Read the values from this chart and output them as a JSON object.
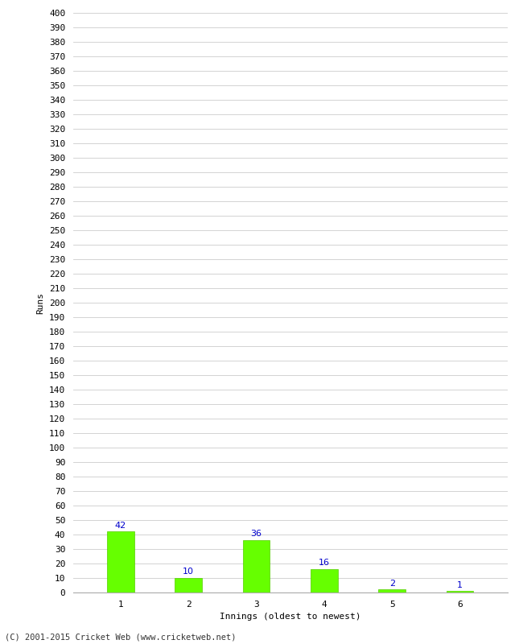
{
  "xlabel": "Innings (oldest to newest)",
  "ylabel": "Runs",
  "categories": [
    1,
    2,
    3,
    4,
    5,
    6
  ],
  "values": [
    42,
    10,
    36,
    16,
    2,
    1
  ],
  "bar_color": "#66ff00",
  "bar_edge_color": "#55cc00",
  "label_color": "#0000cc",
  "ylim": [
    0,
    400
  ],
  "ytick_step": 10,
  "background_color": "#ffffff",
  "grid_color": "#cccccc",
  "footer": "(C) 2001-2015 Cricket Web (www.cricketweb.net)",
  "tick_fontsize": 8,
  "label_fontsize": 8,
  "bar_width": 0.4
}
